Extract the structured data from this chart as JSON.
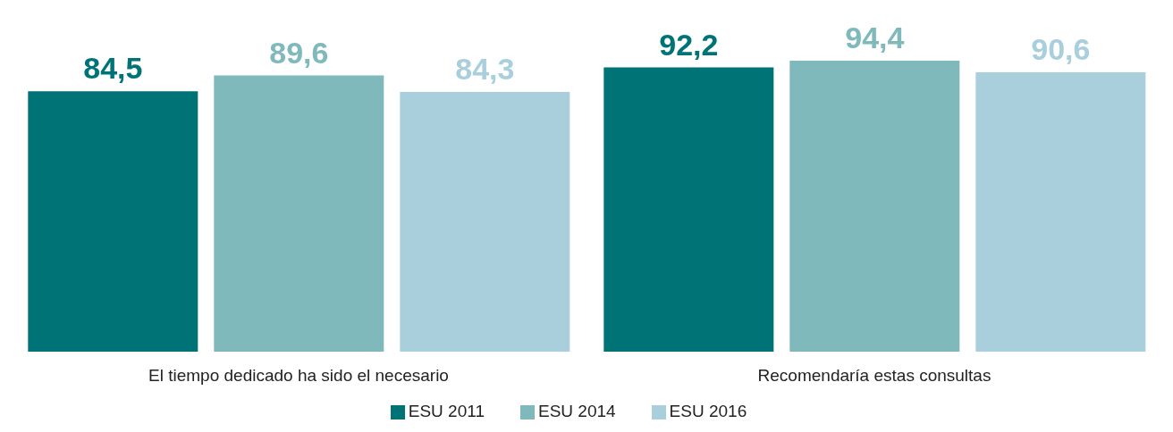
{
  "chart_data": {
    "type": "bar",
    "categories": [
      "El tiempo dedicado ha sido el necesario",
      "Recomendaría estas consultas"
    ],
    "series": [
      {
        "name": "ESU 2011",
        "color": "#007377",
        "values": [
          84.5,
          92.2
        ],
        "value_labels": [
          "84,5",
          "92,2"
        ]
      },
      {
        "name": "ESU 2014",
        "color": "#80b9bb",
        "values": [
          89.6,
          94.4
        ],
        "value_labels": [
          "89,6",
          "94,4"
        ]
      },
      {
        "name": "ESU 2016",
        "color": "#a9cfdc",
        "values": [
          84.3,
          90.6
        ],
        "value_labels": [
          "84,3",
          "90,6"
        ]
      }
    ],
    "tick_labels": "x",
    "legend": "bottom",
    "grid": false
  }
}
